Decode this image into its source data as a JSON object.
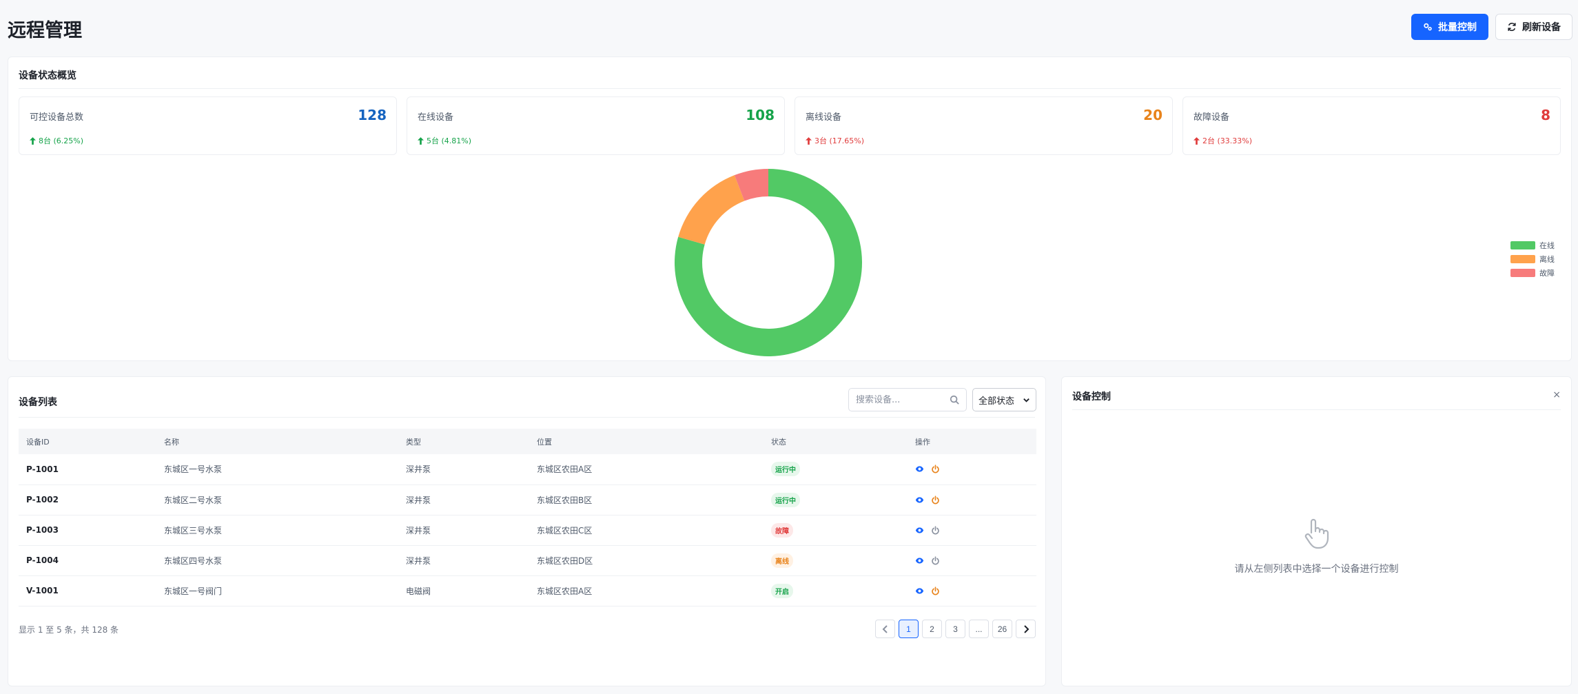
{
  "page": {
    "title": "远程管理"
  },
  "actions": {
    "batch_label": "批量控制",
    "refresh_label": "刷新设备"
  },
  "colors": {
    "primary": "#1664ff",
    "online": "#52c965",
    "offline": "#ffa24c",
    "fault": "#f77b7b",
    "blue_value": "#1664c0",
    "green_value": "#16a34a",
    "orange_value": "#e8831b",
    "red_value": "#e03c3c"
  },
  "overview": {
    "title": "设备状态概览",
    "stats": [
      {
        "label": "可控设备总数",
        "value": "128",
        "change": "8台 (6.25%)"
      },
      {
        "label": "在线设备",
        "value": "108",
        "change": "5台 (4.81%)"
      },
      {
        "label": "离线设备",
        "value": "20",
        "change": "3台 (17.65%)"
      },
      {
        "label": "故障设备",
        "value": "8",
        "change": "2台 (33.33%)"
      }
    ]
  },
  "chart_data": {
    "type": "pie",
    "categories": [
      "在线",
      "离线",
      "故障"
    ],
    "values": [
      108,
      20,
      8
    ],
    "colors": [
      "#52c965",
      "#ffa24c",
      "#f77b7b"
    ],
    "donut": true,
    "legend_position": "right"
  },
  "device_list": {
    "title": "设备列表",
    "search_placeholder": "搜索设备...",
    "status_filter": "全部状态",
    "columns": [
      "设备ID",
      "名称",
      "类型",
      "位置",
      "状态",
      "操作"
    ],
    "rows": [
      {
        "id": "P-1001",
        "name": "东城区一号水泵",
        "type": "深井泵",
        "location": "东城区农田A区",
        "status": "运行中",
        "status_kind": "running"
      },
      {
        "id": "P-1002",
        "name": "东城区二号水泵",
        "type": "深井泵",
        "location": "东城区农田B区",
        "status": "运行中",
        "status_kind": "running"
      },
      {
        "id": "P-1003",
        "name": "东城区三号水泵",
        "type": "深井泵",
        "location": "东城区农田C区",
        "status": "故障",
        "status_kind": "fault"
      },
      {
        "id": "P-1004",
        "name": "东城区四号水泵",
        "type": "深井泵",
        "location": "东城区农田D区",
        "status": "离线",
        "status_kind": "offline"
      },
      {
        "id": "V-1001",
        "name": "东城区一号阀门",
        "type": "电磁阀",
        "location": "东城区农田A区",
        "status": "开启",
        "status_kind": "running"
      }
    ],
    "footer_info": "显示 1 至 5 条，共 128 条",
    "pages": [
      "1",
      "2",
      "3",
      "...",
      "26"
    ],
    "current_page": "1"
  },
  "control_panel": {
    "title": "设备控制",
    "close_label": "×",
    "empty_text": "请从左侧列表中选择一个设备进行控制"
  }
}
